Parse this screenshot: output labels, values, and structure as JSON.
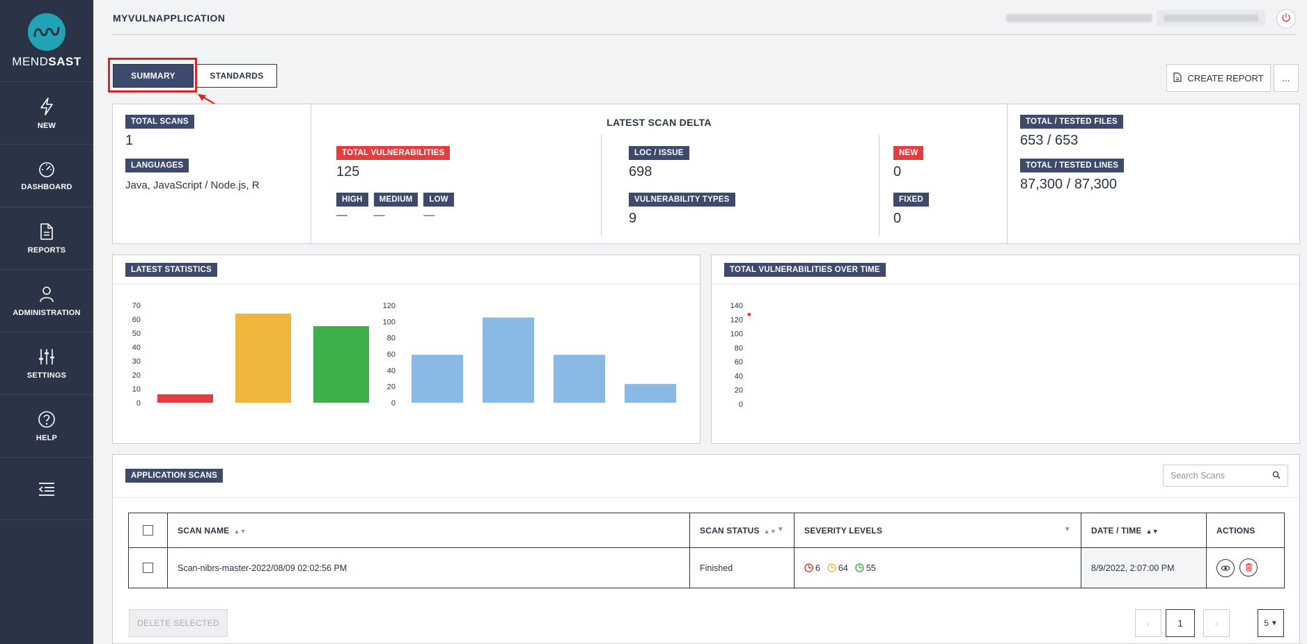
{
  "brand": {
    "name_light": "MEND",
    "name_bold": "SAST"
  },
  "sidebar": {
    "items": [
      {
        "label": "NEW",
        "icon": "bolt-icon"
      },
      {
        "label": "DASHBOARD",
        "icon": "gauge-icon"
      },
      {
        "label": "REPORTS",
        "icon": "document-icon"
      },
      {
        "label": "ADMINISTRATION",
        "icon": "user-icon"
      },
      {
        "label": "SETTINGS",
        "icon": "sliders-icon"
      },
      {
        "label": "HELP",
        "icon": "help-icon"
      }
    ]
  },
  "header": {
    "app_title": "MYVULNAPPLICATION"
  },
  "tabs": {
    "summary": "SUMMARY",
    "standards": "STANDARDS"
  },
  "toolbar": {
    "create_report": "CREATE REPORT",
    "more": "..."
  },
  "summary": {
    "total_scans_label": "TOTAL SCANS",
    "total_scans": "1",
    "languages_label": "LANGUAGES",
    "languages": "Java, JavaScript / Node.js, R",
    "delta_title": "LATEST SCAN DELTA",
    "total_vulns_label": "TOTAL VULNERABILITIES",
    "total_vulns": "125",
    "high_label": "HIGH",
    "medium_label": "MEDIUM",
    "low_label": "LOW",
    "high": "—",
    "medium": "—",
    "low": "—",
    "loc_issue_label": "LOC / ISSUE",
    "loc_issue": "698",
    "vuln_types_label": "VULNERABILITY TYPES",
    "vuln_types": "9",
    "new_label": "NEW",
    "new": "0",
    "fixed_label": "FIXED",
    "fixed": "0",
    "files_label": "TOTAL / TESTED FILES",
    "files": "653 / 653",
    "lines_label": "TOTAL / TESTED LINES",
    "lines": "87,300 / 87,300"
  },
  "latest_statistics": {
    "title": "LATEST STATISTICS"
  },
  "over_time": {
    "title": "TOTAL VULNERABILITIES OVER TIME"
  },
  "chart_data": [
    {
      "type": "bar",
      "categories": [
        "",
        "",
        ""
      ],
      "values": [
        6,
        64,
        55
      ],
      "colors": [
        "#e43d3d",
        "#f0b53d",
        "#3db04b"
      ],
      "ylim": [
        0,
        70
      ],
      "yticks": [
        "70",
        "60",
        "50",
        "40",
        "30",
        "20",
        "10",
        "0"
      ]
    },
    {
      "type": "bar",
      "categories": [
        "",
        "",
        "",
        ""
      ],
      "values": [
        59,
        105,
        59,
        23
      ],
      "colors": [
        "#8bb9e6",
        "#8bb9e6",
        "#8bb9e6",
        "#8bb9e6"
      ],
      "ylim": [
        0,
        120
      ],
      "yticks": [
        "120",
        "100",
        "80",
        "60",
        "40",
        "20",
        "0"
      ]
    },
    {
      "type": "scatter",
      "x": [
        0
      ],
      "y": [
        125
      ],
      "color": "#e43d3d",
      "ylim": [
        0,
        140
      ],
      "yticks": [
        "140",
        "120",
        "100",
        "80",
        "60",
        "40",
        "20",
        "0"
      ]
    }
  ],
  "scans": {
    "title": "APPLICATION SCANS",
    "search_placeholder": "Search Scans",
    "columns": [
      "SCAN NAME",
      "SCAN STATUS",
      "SEVERITY LEVELS",
      "DATE / TIME",
      "ACTIONS"
    ],
    "rows": [
      {
        "name": "Scan-nibrs-master-2022/08/09 02:02:56 PM",
        "status": "Finished",
        "high": "6",
        "medium": "64",
        "low": "55",
        "date": "8/9/2022, 2:07:00 PM"
      }
    ],
    "delete_selected": "DELETE SELECTED",
    "prev": "‹",
    "next": "›",
    "page": "1",
    "page_size": "5"
  }
}
